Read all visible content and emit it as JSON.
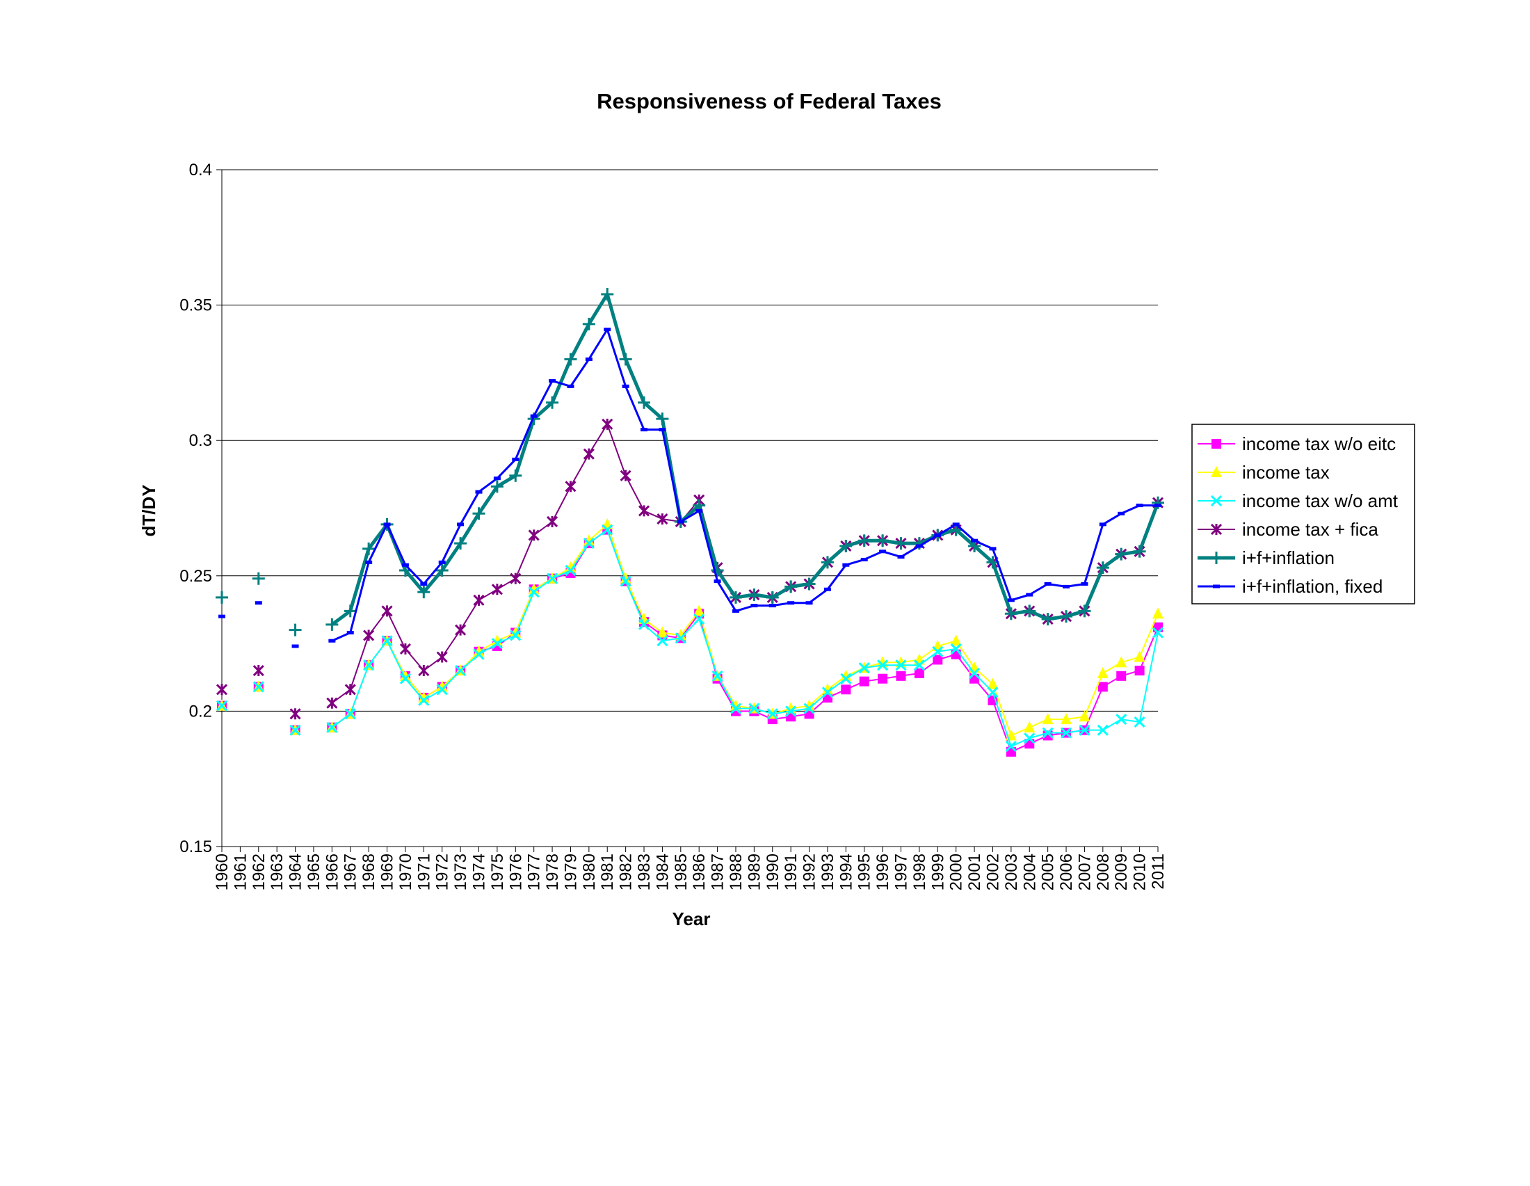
{
  "chart_data": {
    "type": "line",
    "title": "Responsiveness of Federal Taxes",
    "xlabel": "Year",
    "ylabel": "dT/DY",
    "ylim": [
      0.15,
      0.4
    ],
    "yticks": [
      "0.15",
      "0.2",
      "0.25",
      "0.3",
      "0.35",
      "0.4"
    ],
    "grid": "horizontal",
    "legend_position": "right",
    "categories": [
      "1960",
      "1961",
      "1962",
      "1963",
      "1964",
      "1965",
      "1966",
      "1967",
      "1968",
      "1969",
      "1970",
      "1971",
      "1972",
      "1973",
      "1974",
      "1975",
      "1976",
      "1977",
      "1978",
      "1979",
      "1980",
      "1981",
      "1982",
      "1983",
      "1984",
      "1985",
      "1986",
      "1987",
      "1988",
      "1989",
      "1990",
      "1991",
      "1992",
      "1993",
      "1994",
      "1995",
      "1996",
      "1997",
      "1998",
      "1999",
      "2000",
      "2001",
      "2002",
      "2003",
      "2004",
      "2005",
      "2006",
      "2007",
      "2008",
      "2009",
      "2010",
      "2011"
    ],
    "series": [
      {
        "name": "income tax w/o eitc",
        "color": "#ff00ff",
        "marker": "square",
        "line_width": 2,
        "values": [
          0.202,
          null,
          0.209,
          null,
          0.193,
          null,
          0.194,
          0.199,
          0.217,
          0.226,
          0.213,
          0.205,
          0.209,
          0.215,
          0.222,
          0.224,
          0.229,
          0.245,
          0.249,
          0.251,
          0.262,
          0.267,
          0.248,
          0.233,
          0.228,
          0.227,
          0.236,
          0.212,
          0.2,
          0.2,
          0.197,
          0.198,
          0.199,
          0.205,
          0.208,
          0.211,
          0.212,
          0.213,
          0.214,
          0.219,
          0.221,
          0.212,
          0.204,
          0.185,
          0.188,
          0.191,
          0.192,
          0.193,
          0.209,
          0.213,
          0.215,
          0.231
        ]
      },
      {
        "name": "income tax",
        "color": "#ffff00",
        "marker": "triangle",
        "line_width": 2,
        "values": [
          0.202,
          null,
          0.209,
          null,
          0.193,
          null,
          0.194,
          0.199,
          0.217,
          0.226,
          0.213,
          0.205,
          0.209,
          0.215,
          0.222,
          0.226,
          0.229,
          0.245,
          0.249,
          0.253,
          0.263,
          0.269,
          0.249,
          0.234,
          0.229,
          0.228,
          0.237,
          0.213,
          0.202,
          0.201,
          0.199,
          0.201,
          0.202,
          0.208,
          0.213,
          0.216,
          0.218,
          0.218,
          0.219,
          0.224,
          0.226,
          0.216,
          0.21,
          0.191,
          0.194,
          0.197,
          0.197,
          0.198,
          0.214,
          0.218,
          0.22,
          0.236
        ]
      },
      {
        "name": "income tax w/o amt",
        "color": "#00ffff",
        "marker": "x",
        "line_width": 2,
        "values": [
          0.202,
          null,
          0.209,
          null,
          0.193,
          null,
          0.194,
          0.199,
          0.217,
          0.226,
          0.212,
          0.204,
          0.208,
          0.215,
          0.221,
          0.225,
          0.228,
          0.244,
          0.249,
          0.252,
          0.262,
          0.267,
          0.248,
          0.232,
          0.226,
          0.227,
          0.234,
          0.213,
          0.201,
          0.201,
          0.199,
          0.2,
          0.201,
          0.207,
          0.212,
          0.216,
          0.217,
          0.217,
          0.217,
          0.222,
          0.223,
          0.214,
          0.207,
          0.187,
          0.19,
          0.192,
          0.192,
          0.193,
          0.193,
          0.197,
          0.196,
          0.229
        ]
      },
      {
        "name": "income tax + fica",
        "color": "#800080",
        "marker": "star",
        "line_width": 2,
        "values": [
          0.208,
          null,
          0.215,
          null,
          0.199,
          null,
          0.203,
          0.208,
          0.228,
          0.237,
          0.223,
          0.215,
          0.22,
          0.23,
          0.241,
          0.245,
          0.249,
          0.265,
          0.27,
          0.283,
          0.295,
          0.306,
          0.287,
          0.274,
          0.271,
          0.27,
          0.278,
          0.253,
          0.242,
          0.243,
          0.242,
          0.246,
          0.247,
          0.255,
          0.261,
          0.263,
          0.263,
          0.262,
          0.262,
          0.265,
          0.267,
          0.261,
          0.255,
          0.236,
          0.237,
          0.234,
          0.235,
          0.237,
          0.253,
          0.258,
          0.259,
          0.277
        ]
      },
      {
        "name": "i+f+inflation",
        "color": "#008080",
        "marker": "plus",
        "line_width": 5,
        "values": [
          0.242,
          null,
          0.249,
          null,
          0.23,
          null,
          0.232,
          0.237,
          0.26,
          0.269,
          0.252,
          0.244,
          0.252,
          0.262,
          0.273,
          0.283,
          0.287,
          0.308,
          0.314,
          0.33,
          0.343,
          0.354,
          0.33,
          0.314,
          0.308,
          0.27,
          0.276,
          0.252,
          0.242,
          0.243,
          0.242,
          0.246,
          0.247,
          0.255,
          0.261,
          0.263,
          0.263,
          0.262,
          0.262,
          0.265,
          0.267,
          0.261,
          0.255,
          0.236,
          0.237,
          0.234,
          0.235,
          0.237,
          0.253,
          0.258,
          0.259,
          0.277
        ]
      },
      {
        "name": "i+f+inflation, fixed",
        "color": "#0000ff",
        "marker": "dash",
        "line_width": 3,
        "values": [
          0.235,
          null,
          0.24,
          null,
          0.224,
          null,
          0.226,
          0.229,
          0.255,
          0.269,
          0.254,
          0.247,
          0.255,
          0.269,
          0.281,
          0.286,
          0.293,
          0.309,
          0.322,
          0.32,
          0.33,
          0.341,
          0.32,
          0.304,
          0.304,
          0.27,
          0.274,
          0.248,
          0.237,
          0.239,
          0.239,
          0.24,
          0.24,
          0.245,
          0.254,
          0.256,
          0.259,
          0.257,
          0.261,
          0.265,
          0.269,
          0.263,
          0.26,
          0.241,
          0.243,
          0.247,
          0.246,
          0.247,
          0.269,
          0.273,
          0.276,
          0.276
        ]
      }
    ]
  }
}
